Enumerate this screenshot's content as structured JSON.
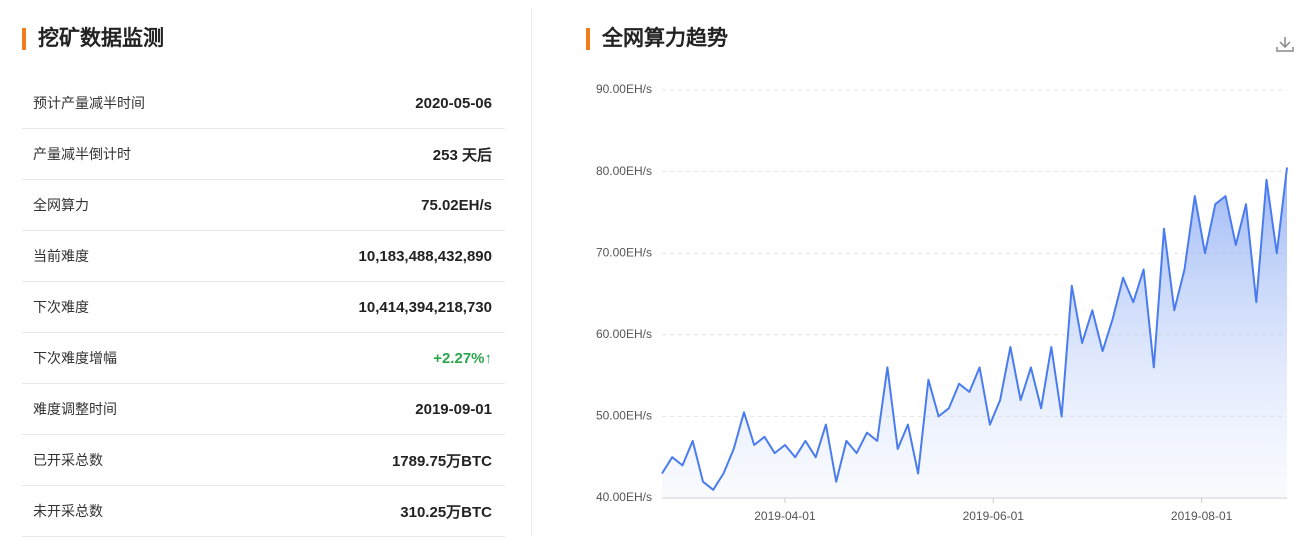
{
  "panel": {
    "title": "挖矿数据监测",
    "rows": [
      [
        "预计产量减半时间",
        "2020-05-06"
      ],
      [
        "产量减半倒计时",
        "253 天后"
      ],
      [
        "全网算力",
        "75.02EH/s"
      ],
      [
        "当前难度",
        "10,183,488,432,890"
      ],
      [
        "下次难度",
        "10,414,394,218,730"
      ],
      [
        "下次难度增幅",
        "+2.27%↑"
      ],
      [
        "难度调整时间",
        "2019-09-01"
      ],
      [
        "已开采总数",
        "1789.75万BTC"
      ],
      [
        "未开采总数",
        "310.25万BTC"
      ]
    ]
  },
  "chart_data": {
    "type": "line",
    "title": "全网算力趋势",
    "color": "#4a7cf0",
    "grid": true,
    "x": [
      "2019-02-24",
      "2019-02-27",
      "2019-03-02",
      "2019-03-05",
      "2019-03-08",
      "2019-03-11",
      "2019-03-14",
      "2019-03-17",
      "2019-03-20",
      "2019-03-23",
      "2019-03-26",
      "2019-03-29",
      "2019-04-01",
      "2019-04-04",
      "2019-04-07",
      "2019-04-10",
      "2019-04-13",
      "2019-04-16",
      "2019-04-19",
      "2019-04-22",
      "2019-04-25",
      "2019-04-28",
      "2019-05-01",
      "2019-05-04",
      "2019-05-07",
      "2019-05-10",
      "2019-05-13",
      "2019-05-16",
      "2019-05-19",
      "2019-05-22",
      "2019-05-25",
      "2019-05-28",
      "2019-05-31",
      "2019-06-03",
      "2019-06-06",
      "2019-06-09",
      "2019-06-12",
      "2019-06-15",
      "2019-06-18",
      "2019-06-21",
      "2019-06-24",
      "2019-06-27",
      "2019-06-30",
      "2019-07-03",
      "2019-07-06",
      "2019-07-09",
      "2019-07-12",
      "2019-07-15",
      "2019-07-18",
      "2019-07-21",
      "2019-07-24",
      "2019-07-27",
      "2019-07-30",
      "2019-08-02",
      "2019-08-05",
      "2019-08-08",
      "2019-08-11",
      "2019-08-14",
      "2019-08-17",
      "2019-08-20",
      "2019-08-23",
      "2019-08-26"
    ],
    "values": [
      43,
      45,
      44,
      47,
      42,
      41,
      43,
      46,
      50.5,
      46.5,
      47.5,
      45.5,
      46.5,
      45,
      47,
      45,
      49,
      42,
      47,
      45.5,
      48,
      47,
      56,
      46,
      49,
      43,
      54.5,
      50,
      51,
      54,
      53,
      56,
      49,
      52,
      58.5,
      52,
      56,
      51,
      58.5,
      50,
      66,
      59,
      63,
      58,
      62,
      67,
      64,
      68,
      56,
      73,
      63,
      68,
      77,
      70,
      76,
      77,
      71,
      76,
      64,
      79,
      70,
      80.5
    ],
    "xlim": [
      "2019-02-24",
      "2019-08-26"
    ],
    "xticks": [
      "2019-04-01",
      "2019-06-01",
      "2019-08-01"
    ],
    "ylim": [
      40,
      90
    ],
    "yticks": [
      {
        "value": 40,
        "label": "40.00EH/s"
      },
      {
        "value": 50,
        "label": "50.00EH/s"
      },
      {
        "value": 60,
        "label": "60.00EH/s"
      },
      {
        "value": 70,
        "label": "70.00EH/s"
      },
      {
        "value": 80,
        "label": "80.00EH/s"
      },
      {
        "value": 90,
        "label": "90.00EH/s"
      }
    ]
  }
}
